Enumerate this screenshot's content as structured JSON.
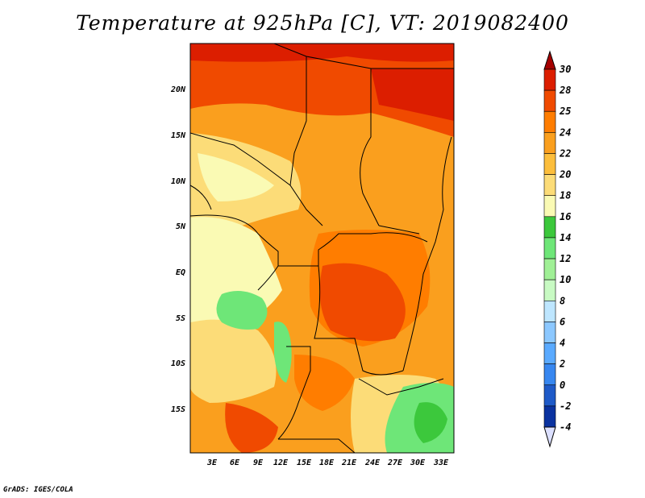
{
  "title": "Temperature at 925hPa [C], VT: 2019082400",
  "credit": "GrADS: IGES/COLA",
  "lat_labels": [
    "20N",
    "15N",
    "10N",
    "5N",
    "EQ",
    "5S",
    "10S",
    "15S"
  ],
  "lon_labels": [
    "3E",
    "6E",
    "9E",
    "12E",
    "15E",
    "18E",
    "21E",
    "24E",
    "27E",
    "30E",
    "33E"
  ],
  "colorbar": {
    "levels": [
      "30",
      "28",
      "25",
      "24",
      "22",
      "20",
      "18",
      "16",
      "14",
      "12",
      "10",
      "8",
      "6",
      "4",
      "2",
      "0",
      "-2",
      "-4"
    ],
    "colors": [
      "#a50000",
      "#dc1e00",
      "#f04a00",
      "#ff7d00",
      "#fa9f1e",
      "#fcbe3c",
      "#fcdc78",
      "#fafab4",
      "#3cc83c",
      "#6ee678",
      "#a0f096",
      "#c8fac3",
      "#bee6ff",
      "#8cc8ff",
      "#5aaaff",
      "#3787f0",
      "#1e5ac8",
      "#0a32a0",
      "#03145a",
      "#dce0ff"
    ]
  },
  "map_colors": {
    "hot": "#dc1e00",
    "warm": "#f04a00",
    "orange": "#ff7d00",
    "amber": "#fa9f1e",
    "gold": "#fcbe3c",
    "pale": "#fcdc78",
    "cream": "#fafab4",
    "green": "#6ee678",
    "lightgreen": "#a0f096"
  }
}
